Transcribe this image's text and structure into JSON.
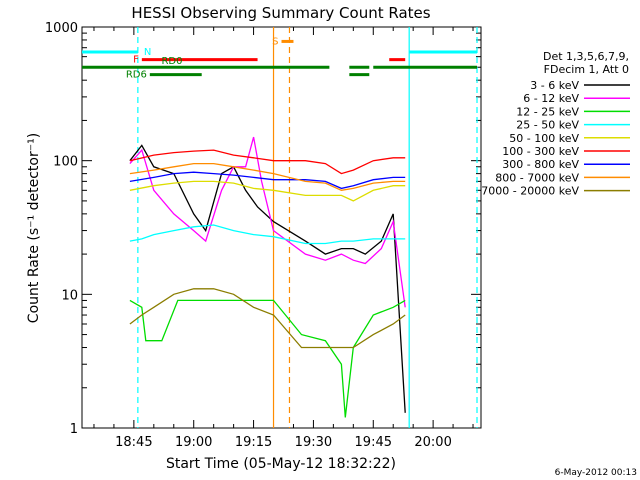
{
  "chart_data": {
    "type": "line",
    "title": "HESSI Observing Summary Count Rates",
    "xlabel": "Start Time (05-May-12 18:32:22)",
    "ylabel": "Count Rate (s⁻¹ detector⁻¹)",
    "y_scale": "log",
    "ylim": [
      1,
      1000
    ],
    "xlim": [
      "18:32",
      "20:12"
    ],
    "x_tick_labels": [
      "18:45",
      "19:00",
      "19:15",
      "19:30",
      "19:45",
      "20:00"
    ],
    "y_tick_labels": [
      "1",
      "10",
      "100",
      "1000"
    ],
    "grid": false,
    "legend_position": "right",
    "legend_header": [
      "Det 1,3,5,6,7,9,",
      "FDecim 1, Att 0"
    ],
    "footer_date": "6-May-2012 00:13",
    "data_gaps": [
      [
        "18:32",
        "18:43"
      ],
      [
        "19:20",
        "19:27"
      ],
      [
        "20:00",
        "20:12"
      ]
    ],
    "series": [
      {
        "name": "3 - 6 keV",
        "color": "#000000",
        "points": [
          [
            "18:44",
            100
          ],
          [
            "18:47",
            130
          ],
          [
            "18:50",
            90
          ],
          [
            "18:55",
            80
          ],
          [
            "19:00",
            40
          ],
          [
            "19:03",
            30
          ],
          [
            "19:07",
            80
          ],
          [
            "19:10",
            90
          ],
          [
            "19:13",
            60
          ],
          [
            "19:16",
            45
          ],
          [
            "19:20",
            35
          ],
          [
            "19:28",
            25
          ],
          [
            "19:33",
            20
          ],
          [
            "19:37",
            22
          ],
          [
            "19:40",
            22
          ],
          [
            "19:43",
            20
          ],
          [
            "19:47",
            25
          ],
          [
            "19:50",
            40
          ],
          [
            "19:53",
            1.3
          ]
        ]
      },
      {
        "name": "6 - 12 keV",
        "color": "#ff00ff",
        "points": [
          [
            "18:44",
            95
          ],
          [
            "18:47",
            120
          ],
          [
            "18:50",
            60
          ],
          [
            "18:55",
            40
          ],
          [
            "19:00",
            30
          ],
          [
            "19:03",
            25
          ],
          [
            "19:07",
            60
          ],
          [
            "19:10",
            90
          ],
          [
            "19:13",
            90
          ],
          [
            "19:15",
            150
          ],
          [
            "19:17",
            70
          ],
          [
            "19:20",
            30
          ],
          [
            "19:28",
            20
          ],
          [
            "19:33",
            18
          ],
          [
            "19:37",
            20
          ],
          [
            "19:40",
            18
          ],
          [
            "19:43",
            17
          ],
          [
            "19:47",
            22
          ],
          [
            "19:50",
            35
          ],
          [
            "19:53",
            8
          ]
        ]
      },
      {
        "name": "12 - 25 keV",
        "color": "#00dd00",
        "points": [
          [
            "18:44",
            9
          ],
          [
            "18:47",
            8
          ],
          [
            "18:48",
            4.5
          ],
          [
            "18:52",
            4.5
          ],
          [
            "18:56",
            9
          ],
          [
            "19:00",
            9
          ],
          [
            "19:05",
            9
          ],
          [
            "19:10",
            9
          ],
          [
            "19:15",
            9
          ],
          [
            "19:20",
            9
          ],
          [
            "19:27",
            5
          ],
          [
            "19:33",
            4.5
          ],
          [
            "19:37",
            3
          ],
          [
            "19:38",
            1.2
          ],
          [
            "19:40",
            4
          ],
          [
            "19:45",
            7
          ],
          [
            "19:50",
            8
          ],
          [
            "19:53",
            9
          ]
        ]
      },
      {
        "name": "25 - 50 keV",
        "color": "#00ffff",
        "points": [
          [
            "18:44",
            25
          ],
          [
            "18:47",
            26
          ],
          [
            "18:50",
            28
          ],
          [
            "18:55",
            30
          ],
          [
            "19:00",
            32
          ],
          [
            "19:05",
            33
          ],
          [
            "19:10",
            30
          ],
          [
            "19:15",
            28
          ],
          [
            "19:20",
            27
          ],
          [
            "19:28",
            24
          ],
          [
            "19:33",
            24
          ],
          [
            "19:37",
            25
          ],
          [
            "19:40",
            25
          ],
          [
            "19:45",
            26
          ],
          [
            "19:50",
            26
          ],
          [
            "19:53",
            26
          ]
        ]
      },
      {
        "name": "50 - 100 keV",
        "color": "#dddd00",
        "points": [
          [
            "18:44",
            60
          ],
          [
            "18:50",
            65
          ],
          [
            "18:55",
            68
          ],
          [
            "19:00",
            70
          ],
          [
            "19:05",
            70
          ],
          [
            "19:10",
            68
          ],
          [
            "19:15",
            62
          ],
          [
            "19:20",
            60
          ],
          [
            "19:28",
            55
          ],
          [
            "19:33",
            55
          ],
          [
            "19:37",
            55
          ],
          [
            "19:40",
            50
          ],
          [
            "19:45",
            60
          ],
          [
            "19:50",
            65
          ],
          [
            "19:53",
            65
          ]
        ]
      },
      {
        "name": "100 - 300 keV",
        "color": "#ff0000",
        "points": [
          [
            "18:44",
            100
          ],
          [
            "18:50",
            110
          ],
          [
            "18:55",
            115
          ],
          [
            "19:00",
            118
          ],
          [
            "19:05",
            120
          ],
          [
            "19:10",
            110
          ],
          [
            "19:15",
            105
          ],
          [
            "19:20",
            100
          ],
          [
            "19:28",
            100
          ],
          [
            "19:33",
            95
          ],
          [
            "19:37",
            80
          ],
          [
            "19:40",
            85
          ],
          [
            "19:45",
            100
          ],
          [
            "19:50",
            105
          ],
          [
            "19:53",
            105
          ]
        ]
      },
      {
        "name": "300 - 800 keV",
        "color": "#0000ff",
        "points": [
          [
            "18:44",
            70
          ],
          [
            "18:50",
            75
          ],
          [
            "18:55",
            80
          ],
          [
            "19:00",
            82
          ],
          [
            "19:05",
            80
          ],
          [
            "19:10",
            78
          ],
          [
            "19:15",
            75
          ],
          [
            "19:20",
            72
          ],
          [
            "19:28",
            72
          ],
          [
            "19:33",
            70
          ],
          [
            "19:37",
            62
          ],
          [
            "19:40",
            65
          ],
          [
            "19:45",
            72
          ],
          [
            "19:50",
            75
          ],
          [
            "19:53",
            75
          ]
        ]
      },
      {
        "name": "800 - 7000 keV",
        "color": "#ff8c00",
        "points": [
          [
            "18:44",
            80
          ],
          [
            "18:50",
            85
          ],
          [
            "18:55",
            90
          ],
          [
            "19:00",
            95
          ],
          [
            "19:05",
            95
          ],
          [
            "19:10",
            90
          ],
          [
            "19:15",
            85
          ],
          [
            "19:20",
            80
          ],
          [
            "19:28",
            70
          ],
          [
            "19:33",
            68
          ],
          [
            "19:37",
            60
          ],
          [
            "19:40",
            62
          ],
          [
            "19:45",
            68
          ],
          [
            "19:50",
            70
          ],
          [
            "19:53",
            70
          ]
        ]
      },
      {
        "name": "7000 - 20000 keV",
        "color": "#8b7d00",
        "points": [
          [
            "18:44",
            6
          ],
          [
            "18:47",
            7
          ],
          [
            "18:50",
            8
          ],
          [
            "18:55",
            10
          ],
          [
            "19:00",
            11
          ],
          [
            "19:05",
            11
          ],
          [
            "19:10",
            10
          ],
          [
            "19:15",
            8
          ],
          [
            "19:20",
            7
          ],
          [
            "19:27",
            4
          ],
          [
            "19:33",
            4
          ],
          [
            "19:37",
            4
          ],
          [
            "19:40",
            4
          ],
          [
            "19:45",
            5
          ],
          [
            "19:50",
            6
          ],
          [
            "19:53",
            7
          ]
        ]
      }
    ],
    "flag_bars": [
      {
        "label": "N",
        "color": "#00ffff",
        "value": 650,
        "segments": [
          [
            "18:32",
            "18:46"
          ],
          [
            "19:54",
            "20:11"
          ]
        ]
      },
      {
        "label": "F",
        "color": "#ff0000",
        "value": 570,
        "segments": [
          [
            "18:47",
            "19:16"
          ],
          [
            "19:49",
            "19:53"
          ]
        ]
      },
      {
        "label": "S",
        "color": "#ff8c00",
        "value": 780,
        "segments": [
          [
            "19:22",
            "19:25"
          ]
        ]
      },
      {
        "label": "RD0",
        "color": "#008000",
        "value": 500,
        "segments": [
          [
            "18:32",
            "19:34"
          ],
          [
            "19:39",
            "19:44"
          ],
          [
            "19:45",
            "20:11"
          ]
        ]
      },
      {
        "label": "RD6",
        "color": "#008000",
        "value": 440,
        "segments": [
          [
            "18:49",
            "19:02"
          ],
          [
            "19:39",
            "19:44"
          ]
        ]
      }
    ],
    "vertical_lines": [
      {
        "time": "18:46",
        "color": "#00ffff",
        "style": "dashed"
      },
      {
        "time": "19:54",
        "color": "#00ffff",
        "style": "solid"
      },
      {
        "time": "20:11",
        "color": "#00ffff",
        "style": "dashed"
      },
      {
        "time": "19:20",
        "color": "#ff8c00",
        "style": "solid"
      },
      {
        "time": "19:24",
        "color": "#ff8c00",
        "style": "dashed"
      }
    ]
  }
}
